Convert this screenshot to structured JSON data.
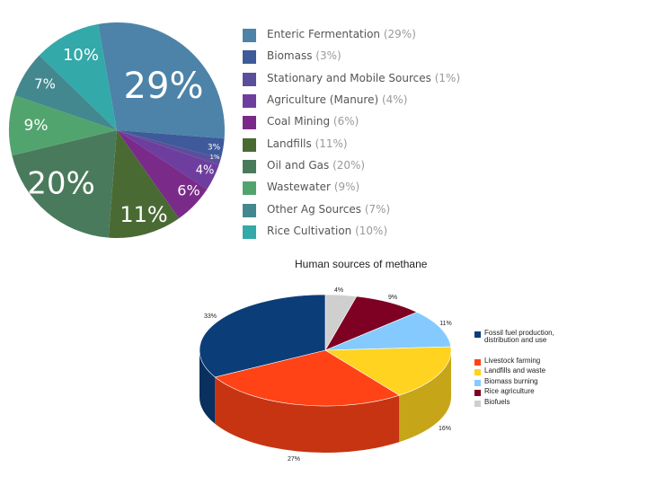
{
  "chart_data": [
    {
      "type": "pie",
      "title": "",
      "slices": [
        {
          "label": "Enteric Fermentation",
          "pct_text": "(29%)",
          "value": 29,
          "slice_label": "29%",
          "color": "#4d83a8"
        },
        {
          "label": "Biomass",
          "pct_text": "(3%)",
          "value": 3,
          "slice_label": "3%",
          "color": "#3e5a9a"
        },
        {
          "label": "Stationary and Mobile Sources",
          "pct_text": "(1%)",
          "value": 1,
          "slice_label": "1%",
          "color": "#5b4f9b"
        },
        {
          "label": "Agriculture (Manure)",
          "pct_text": "(4%)",
          "value": 4,
          "slice_label": "4%",
          "color": "#6e3e9e"
        },
        {
          "label": "Coal Mining",
          "pct_text": "(6%)",
          "value": 6,
          "slice_label": "6%",
          "color": "#7a2b8a"
        },
        {
          "label": "Landfills",
          "pct_text": "(11%)",
          "value": 11,
          "slice_label": "11%",
          "color": "#4a6a34"
        },
        {
          "label": "Oil and Gas",
          "pct_text": "(20%)",
          "value": 20,
          "slice_label": "20%",
          "color": "#4a7a5c"
        },
        {
          "label": "Wastewater",
          "pct_text": "(9%)",
          "value": 9,
          "slice_label": "9%",
          "color": "#52a46e"
        },
        {
          "label": "Other Ag Sources",
          "pct_text": "(7%)",
          "value": 7,
          "slice_label": "7%",
          "color": "#43888e"
        },
        {
          "label": "Rice Cultivation",
          "pct_text": "(10%)",
          "value": 10,
          "slice_label": "10%",
          "color": "#33a9a9"
        }
      ]
    },
    {
      "type": "pie",
      "title": "Human sources of methane",
      "slices": [
        {
          "label": "Fossil fuel production, distribution and use",
          "value": 33,
          "slice_label": "33%",
          "color": "#0b3e79"
        },
        {
          "label": "Livestock farming",
          "value": 27,
          "slice_label": "27%",
          "color": "#ff4316"
        },
        {
          "label": "Landfills and waste",
          "value": 16,
          "slice_label": "16%",
          "color": "#ffd31f"
        },
        {
          "label": "Biomass burning",
          "value": 11,
          "slice_label": "11%",
          "color": "#84caff"
        },
        {
          "label": "Rice agriculture",
          "value": 9,
          "slice_label": "9%",
          "color": "#7e0022"
        },
        {
          "label": "Biofuels",
          "value": 4,
          "slice_label": "4%",
          "color": "#cfcfcf"
        }
      ]
    }
  ]
}
